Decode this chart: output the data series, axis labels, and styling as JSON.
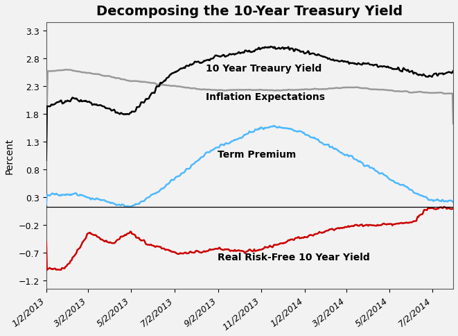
{
  "title": "Decomposing the 10-Year Treasury Yield",
  "ylabel": "Percent",
  "background_color": "#f2f2f2",
  "plot_bg_color": "#f2f2f2",
  "ylim": [
    -1.35,
    3.45
  ],
  "yticks": [
    -1.2,
    -0.7,
    -0.2,
    0.3,
    0.8,
    1.3,
    1.8,
    2.3,
    2.8,
    3.3
  ],
  "xtick_labels": [
    "1/2/2013",
    "3/2/2013",
    "5/2/2013",
    "7/2/2013",
    "9/2/2013",
    "11/2/2013",
    "1/2/2014",
    "3/2/2014",
    "5/2/2014",
    "7/2/2014"
  ],
  "treasury_color": "#000000",
  "inflation_color": "#999999",
  "term_color": "#4db8ff",
  "real_color": "#cc0000",
  "treasury_label": "10 Year Treaury Yield",
  "inflation_label": "Inflation Expectations",
  "term_label": "Term Premium",
  "real_label": "Real Risk-Free 10 Year Yield",
  "line_width": 1.8,
  "hline_y": 0.13,
  "title_fontsize": 14,
  "tick_fontsize": 9,
  "label_fontsize": 10,
  "annotation_fontsize": 10
}
